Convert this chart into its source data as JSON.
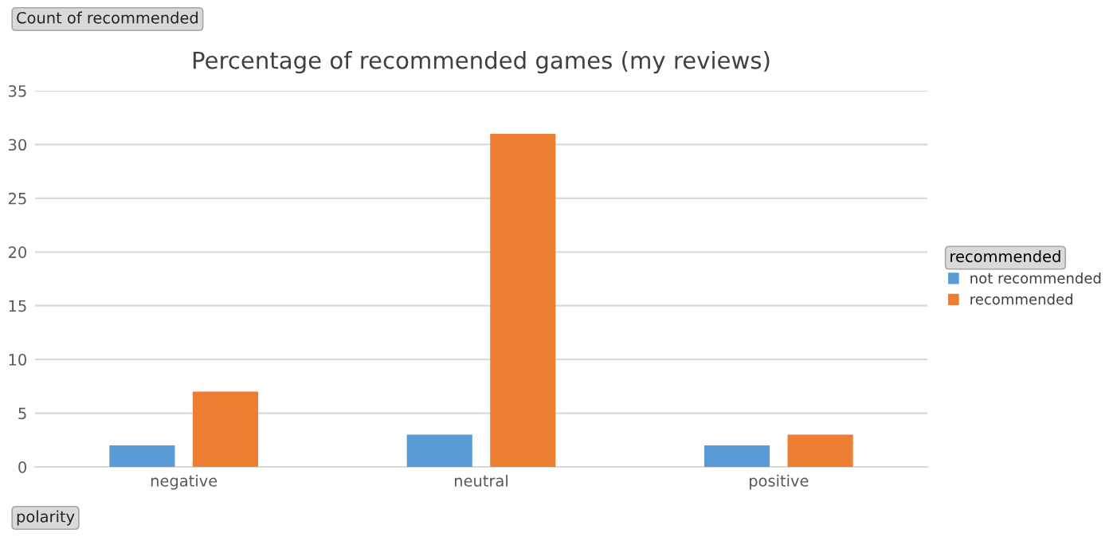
{
  "chart_data": {
    "type": "bar",
    "title": "Percentage of recommended games (my reviews)",
    "ylabel": "Count of recommended",
    "xlabel": "polarity",
    "legend_title": "recommended",
    "categories": [
      "negative",
      "neutral",
      "positive"
    ],
    "series": [
      {
        "name": "not recommended",
        "color": "#5b9bd5",
        "values": [
          2,
          3,
          2
        ]
      },
      {
        "name": "recommended",
        "color": "#ed7d31",
        "values": [
          7,
          31,
          3
        ]
      }
    ],
    "ylim": [
      0,
      35
    ],
    "yticks": [
      0,
      5,
      10,
      15,
      20,
      25,
      30,
      35
    ],
    "grid": "y",
    "legend": "right"
  }
}
